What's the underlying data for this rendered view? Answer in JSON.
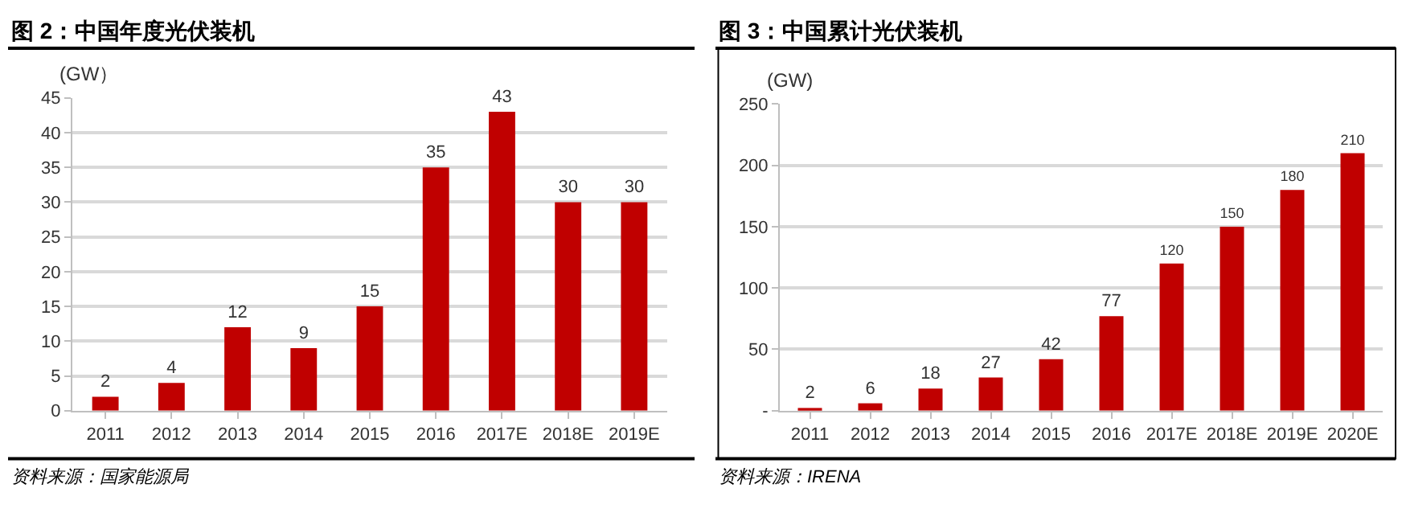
{
  "chart_data": [
    {
      "type": "bar",
      "title": "图 2：中国年度光伏装机",
      "ylabel": "(GW）",
      "categories": [
        "2011",
        "2012",
        "2013",
        "2014",
        "2015",
        "2016",
        "2017E",
        "2018E",
        "2019E"
      ],
      "values": [
        2,
        4,
        12,
        9,
        15,
        35,
        43,
        30,
        30
      ],
      "color": "#c00000",
      "ylim": [
        0,
        45
      ],
      "yticks": [
        0,
        5,
        10,
        15,
        20,
        25,
        30,
        35,
        40,
        45
      ],
      "grid": "y",
      "data_labels": true,
      "annotations": [
        "资料来源：国家能源局"
      ]
    },
    {
      "type": "bar",
      "title": "图 3：中国累计光伏装机",
      "ylabel": "(GW)",
      "categories": [
        "2011",
        "2012",
        "2013",
        "2014",
        "2015",
        "2016",
        "2017E",
        "2018E",
        "2019E",
        "2020E"
      ],
      "values": [
        2,
        6,
        18,
        27,
        42,
        77,
        120,
        150,
        180,
        210
      ],
      "color": "#c00000",
      "ylim": [
        0,
        250
      ],
      "yticks": [
        {
          "value": 0,
          "label": "-"
        },
        50,
        100,
        150,
        200,
        250
      ],
      "grid": "y",
      "data_labels": true,
      "annotations": [
        "资料来源：IRENA"
      ]
    }
  ]
}
